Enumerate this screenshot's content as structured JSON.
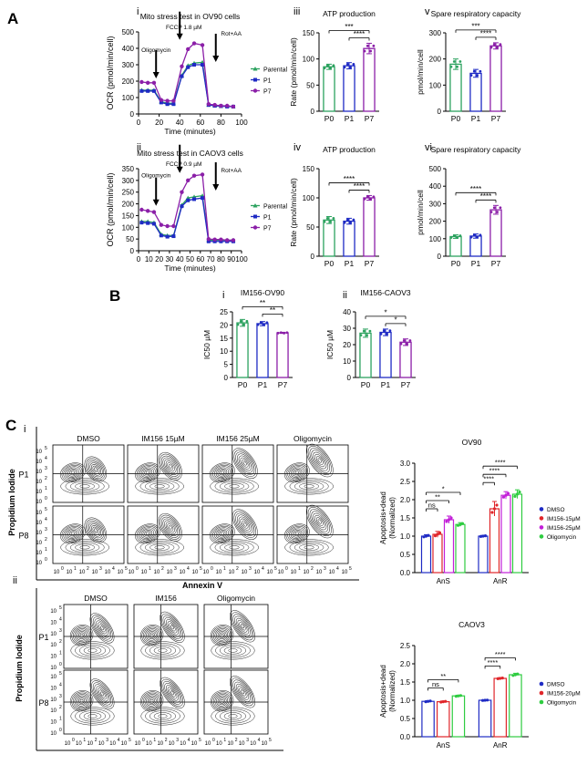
{
  "colors": {
    "green": "#2ca25f",
    "blue": "#1f2bc4",
    "purple": "#8b1fa8",
    "red": "#e0262a",
    "magenta": "#c21fd8",
    "lime": "#2ecc40",
    "gray": "#9a9a9a"
  },
  "labels": {
    "A": "A",
    "B": "B",
    "C": "C",
    "i": "i",
    "ii": "ii",
    "iii": "iii",
    "iv": "iv",
    "v": "v",
    "vi": "vi"
  },
  "mito": [
    {
      "title": "Mito stress test in OV90 cells",
      "ylabel": "OCR (pmol/min/cell)",
      "xlabel": "Time (minutes)",
      "yticks": [
        0,
        100,
        200,
        300,
        400,
        500
      ],
      "xticks": [
        0,
        20,
        40,
        60,
        80,
        100
      ],
      "arrows": {
        "oligo": "Oligomycin",
        "fccp": "FCCP 1.8 µM",
        "rot": "Rot+AA"
      },
      "legend": [
        "Parental",
        "P1",
        "P7"
      ],
      "time": [
        3,
        9,
        15,
        22,
        28,
        34,
        42,
        48,
        54,
        62,
        68,
        74,
        80,
        86,
        92
      ],
      "series": {
        "Parental": [
          145,
          145,
          145,
          75,
          65,
          65,
          235,
          295,
          310,
          315,
          55,
          50,
          48,
          48,
          45
        ],
        "P1": [
          140,
          140,
          140,
          70,
          60,
          60,
          230,
          285,
          300,
          300,
          55,
          50,
          48,
          45,
          45
        ],
        "P7": [
          195,
          190,
          190,
          85,
          80,
          80,
          290,
          395,
          430,
          420,
          60,
          55,
          50,
          50,
          45
        ]
      },
      "ymax": 500
    },
    {
      "title": "Mito stress test in CAOV3 cells",
      "ylabel": "OCR (pmol/min/cell)",
      "xlabel": "Time (minutes)",
      "yticks": [
        0,
        50,
        100,
        150,
        200,
        250,
        300,
        350
      ],
      "xticks": [
        0,
        10,
        20,
        30,
        40,
        50,
        60,
        70,
        80,
        90,
        100
      ],
      "arrows": {
        "oligo": "Oligomycin",
        "fccp": "FCCP 0.9 µM",
        "rot": "Rot+AA"
      },
      "legend": [
        "Parental",
        "P1",
        "P7"
      ],
      "time": [
        3,
        9,
        15,
        22,
        28,
        34,
        42,
        48,
        54,
        62,
        68,
        74,
        80,
        86,
        92
      ],
      "series": {
        "Parental": [
          125,
          125,
          120,
          70,
          65,
          65,
          195,
          225,
          230,
          235,
          45,
          45,
          45,
          45,
          45
        ],
        "P1": [
          120,
          118,
          115,
          65,
          60,
          62,
          190,
          215,
          220,
          225,
          40,
          40,
          40,
          40,
          40
        ],
        "P7": [
          175,
          170,
          165,
          110,
          105,
          105,
          250,
          300,
          320,
          325,
          50,
          48,
          48,
          45,
          45
        ]
      },
      "ymax": 350
    }
  ],
  "bars": {
    "atp1": {
      "title": "ATP production",
      "ylabel": "Rate (pmol/min/cell)",
      "yticks": [
        0,
        50,
        100,
        150
      ],
      "ymax": 150,
      "cats": [
        "P0",
        "P1",
        "P7"
      ],
      "values": [
        85,
        87,
        120
      ],
      "errs": [
        5,
        6,
        10
      ],
      "sig": [
        "***",
        "****"
      ]
    },
    "atp2": {
      "title": "ATP production",
      "ylabel": "Rate (pmol/min/cell)",
      "yticks": [
        0,
        50,
        100,
        150
      ],
      "ymax": 150,
      "cats": [
        "P0",
        "P1",
        "P7"
      ],
      "values": [
        62,
        60,
        100
      ],
      "errs": [
        6,
        5,
        4
      ],
      "sig": [
        "****",
        "****"
      ]
    },
    "src1": {
      "title": "Spare respiratory capacity",
      "ylabel": "pmol/min/cell",
      "yticks": [
        0,
        100,
        200,
        300
      ],
      "ymax": 300,
      "cats": [
        "P0",
        "P1",
        "P7"
      ],
      "values": [
        180,
        145,
        250
      ],
      "errs": [
        20,
        15,
        12
      ],
      "sig": [
        "***",
        "****"
      ]
    },
    "src2": {
      "title": "Spare respiratory capacity",
      "ylabel": "pmol/min/cell",
      "yticks": [
        0,
        100,
        200,
        300,
        400,
        500
      ],
      "ymax": 500,
      "cats": [
        "P0",
        "P1",
        "P7"
      ],
      "values": [
        112,
        115,
        265
      ],
      "errs": [
        10,
        12,
        25
      ],
      "sig": [
        "****",
        "****"
      ]
    },
    "ic1": {
      "title": "IM156-OV90",
      "ylabel": "IC50 µM",
      "yticks": [
        0,
        5,
        10,
        15,
        20,
        25
      ],
      "ymax": 25,
      "cats": [
        "P0",
        "P1",
        "P7"
      ],
      "values": [
        20.8,
        20.5,
        17
      ],
      "errs": [
        1.3,
        0.8,
        0.2
      ],
      "sig": [
        "**",
        "**"
      ]
    },
    "ic2": {
      "title": "IM156-CAOV3",
      "ylabel": "IC50 µM",
      "yticks": [
        0,
        10,
        20,
        30,
        40
      ],
      "ymax": 40,
      "cats": [
        "P0",
        "P1",
        "P7"
      ],
      "values": [
        27,
        27.5,
        21.5
      ],
      "errs": [
        2.5,
        2,
        2
      ],
      "sig": [
        "*",
        "*"
      ]
    }
  },
  "flow1": {
    "cols": [
      "DMSO",
      "IM156 15µM",
      "IM156 25µM",
      "Oligomycin"
    ],
    "rows": [
      "P1",
      "P8"
    ],
    "ylabel": "Propidium Iodide",
    "xlabel": "Annexin V",
    "ticklabel": "10",
    "exps": [
      "5",
      "4",
      "3",
      "2",
      "1",
      "0"
    ]
  },
  "flow2": {
    "cols": [
      "DMSO",
      "IM156",
      "Oligomycin"
    ],
    "rows": [
      "P1",
      "P8"
    ],
    "ylabel": "Propidium Iodide"
  },
  "apo1": {
    "title": "OV90",
    "ylabel": "Apoptosis+dead",
    "ylabel2": "(Normalized)",
    "yticks": [
      "0.0",
      "0.5",
      "1.0",
      "1.5",
      "2.0",
      "2.5",
      "3.0"
    ],
    "ymax": 3.0,
    "groups": [
      "AnS",
      "AnR"
    ],
    "legend": [
      "DMSO",
      "IM156-15µM",
      "IM156-25µM",
      "Oligomycin"
    ],
    "values": [
      [
        1.0,
        1.05,
        1.45,
        1.32
      ],
      [
        1.0,
        1.75,
        2.12,
        2.15
      ]
    ],
    "errs": [
      [
        0.04,
        0.08,
        0.1,
        0.05
      ],
      [
        0.02,
        0.2,
        0.1,
        0.12
      ]
    ],
    "sig": [
      "ns",
      "**",
      "*",
      "****",
      "****",
      "****"
    ]
  },
  "apo2": {
    "title": "CAOV3",
    "ylabel": "Apoptosis+dead",
    "ylabel2": "(Normalized)",
    "yticks": [
      "0.0",
      "0.5",
      "1.0",
      "1.5",
      "2.0",
      "2.5"
    ],
    "ymax": 2.5,
    "groups": [
      "AnS",
      "AnR"
    ],
    "legend": [
      "DMSO",
      "IM156-20µM",
      "Oligomycin"
    ],
    "values": [
      [
        0.97,
        0.96,
        1.12
      ],
      [
        1.0,
        1.6,
        1.7
      ]
    ],
    "errs": [
      [
        0.02,
        0.02,
        0.02
      ],
      [
        0.01,
        0.02,
        0.04
      ]
    ],
    "sig": [
      "ns",
      "**",
      "****",
      "****"
    ]
  }
}
